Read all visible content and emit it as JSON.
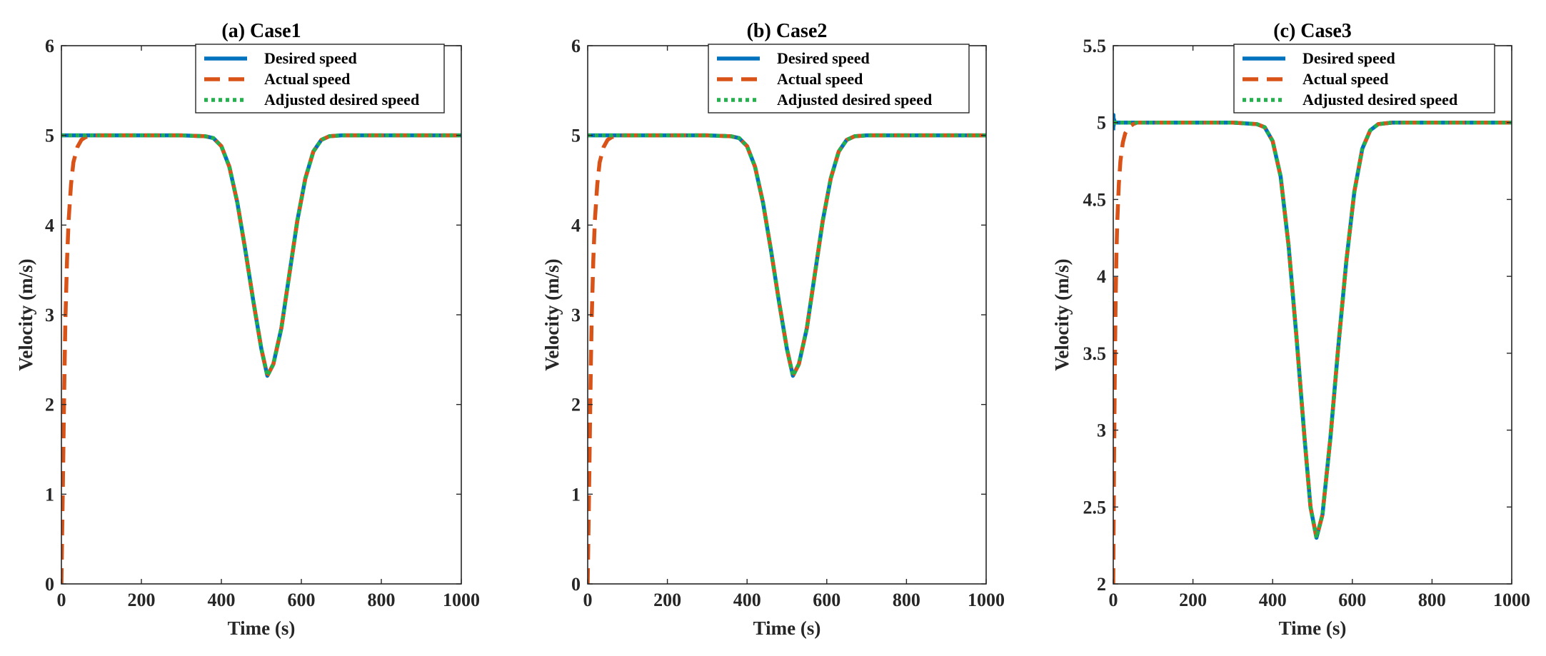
{
  "colors": {
    "desired": "#0072BD",
    "actual": "#D95319",
    "adjusted": "#22B14C",
    "axis": "#262626"
  },
  "chart_data": [
    {
      "type": "line",
      "title": "(a) Case1",
      "xlabel": "Time (s)",
      "ylabel": "Velocity (m/s)",
      "xlim": [
        0,
        1000
      ],
      "ylim": [
        0,
        6
      ],
      "xticks": [
        0,
        200,
        400,
        600,
        800,
        1000
      ],
      "xtick_labels": [
        "0",
        "200",
        "400",
        "600",
        "800",
        "1000"
      ],
      "yticks": [
        0,
        1,
        2,
        3,
        4,
        5,
        6
      ],
      "ytick_labels": [
        "0",
        "1",
        "2",
        "3",
        "4",
        "5",
        "6"
      ],
      "legend_position": "top-right",
      "series": [
        {
          "name": "Desired speed",
          "style": "solid",
          "x": [
            0,
            100,
            200,
            300,
            360,
            380,
            400,
            420,
            440,
            460,
            480,
            500,
            515,
            530,
            550,
            570,
            590,
            610,
            630,
            650,
            670,
            700,
            800,
            900,
            1000
          ],
          "y": [
            5,
            5,
            5,
            5,
            4.99,
            4.97,
            4.88,
            4.65,
            4.25,
            3.72,
            3.15,
            2.62,
            2.32,
            2.45,
            2.85,
            3.45,
            4.05,
            4.52,
            4.82,
            4.95,
            4.99,
            5,
            5,
            5,
            5
          ]
        },
        {
          "name": "Actual speed",
          "style": "dashed",
          "x": [
            0,
            2,
            4,
            6,
            8,
            10,
            14,
            18,
            24,
            30,
            40,
            50,
            60,
            80,
            100,
            200,
            300,
            360,
            380,
            400,
            420,
            440,
            460,
            480,
            500,
            515,
            530,
            550,
            570,
            590,
            610,
            630,
            650,
            670,
            700,
            800,
            900,
            1000
          ],
          "y": [
            0,
            0.6,
            1.2,
            1.85,
            2.45,
            2.95,
            3.6,
            4.05,
            4.45,
            4.7,
            4.87,
            4.95,
            4.98,
            5,
            5,
            5,
            5,
            4.99,
            4.97,
            4.88,
            4.65,
            4.25,
            3.72,
            3.15,
            2.62,
            2.32,
            2.45,
            2.85,
            3.45,
            4.05,
            4.52,
            4.82,
            4.95,
            4.99,
            5,
            5,
            5,
            5
          ]
        },
        {
          "name": "Adjusted desired speed",
          "style": "dotted",
          "x": [
            0,
            100,
            200,
            300,
            360,
            380,
            400,
            420,
            440,
            460,
            480,
            500,
            515,
            530,
            550,
            570,
            590,
            610,
            630,
            650,
            670,
            700,
            800,
            900,
            1000
          ],
          "y": [
            5,
            5,
            5,
            5,
            4.99,
            4.97,
            4.88,
            4.65,
            4.25,
            3.72,
            3.15,
            2.62,
            2.32,
            2.45,
            2.85,
            3.45,
            4.05,
            4.52,
            4.82,
            4.95,
            4.99,
            5,
            5,
            5,
            5
          ]
        }
      ]
    },
    {
      "type": "line",
      "title": "(b) Case2",
      "xlabel": "Time (s)",
      "ylabel": "Velocity (m/s)",
      "xlim": [
        0,
        1000
      ],
      "ylim": [
        0,
        6
      ],
      "xticks": [
        0,
        200,
        400,
        600,
        800,
        1000
      ],
      "xtick_labels": [
        "0",
        "200",
        "400",
        "600",
        "800",
        "1000"
      ],
      "yticks": [
        0,
        1,
        2,
        3,
        4,
        5,
        6
      ],
      "ytick_labels": [
        "0",
        "1",
        "2",
        "3",
        "4",
        "5",
        "6"
      ],
      "legend_position": "top-right",
      "series": [
        {
          "name": "Desired speed",
          "style": "solid",
          "x": [
            0,
            100,
            200,
            300,
            360,
            380,
            400,
            420,
            440,
            460,
            480,
            500,
            515,
            530,
            550,
            570,
            590,
            610,
            630,
            650,
            670,
            700,
            800,
            900,
            1000
          ],
          "y": [
            5,
            5,
            5,
            5,
            4.99,
            4.97,
            4.88,
            4.65,
            4.25,
            3.72,
            3.15,
            2.62,
            2.32,
            2.45,
            2.85,
            3.45,
            4.05,
            4.52,
            4.82,
            4.95,
            4.99,
            5,
            5,
            5,
            5
          ]
        },
        {
          "name": "Actual speed",
          "style": "dashed",
          "x": [
            0,
            2,
            4,
            6,
            8,
            10,
            14,
            18,
            24,
            30,
            40,
            50,
            60,
            80,
            100,
            200,
            300,
            360,
            380,
            400,
            420,
            440,
            460,
            480,
            500,
            515,
            530,
            550,
            570,
            590,
            610,
            630,
            650,
            670,
            700,
            800,
            900,
            1000
          ],
          "y": [
            0,
            0.6,
            1.2,
            1.85,
            2.45,
            2.95,
            3.6,
            4.05,
            4.45,
            4.7,
            4.87,
            4.95,
            4.98,
            5,
            5,
            5,
            5,
            4.99,
            4.97,
            4.88,
            4.65,
            4.25,
            3.72,
            3.15,
            2.62,
            2.32,
            2.45,
            2.85,
            3.45,
            4.05,
            4.52,
            4.82,
            4.95,
            4.99,
            5,
            5,
            5,
            5
          ]
        },
        {
          "name": "Adjusted desired speed",
          "style": "dotted",
          "x": [
            0,
            100,
            200,
            300,
            360,
            380,
            400,
            420,
            440,
            460,
            480,
            500,
            515,
            530,
            550,
            570,
            590,
            610,
            630,
            650,
            670,
            700,
            800,
            900,
            1000
          ],
          "y": [
            5,
            5,
            5,
            5,
            4.99,
            4.97,
            4.88,
            4.65,
            4.25,
            3.72,
            3.15,
            2.62,
            2.32,
            2.45,
            2.85,
            3.45,
            4.05,
            4.52,
            4.82,
            4.95,
            4.99,
            5,
            5,
            5,
            5
          ]
        }
      ]
    },
    {
      "type": "line",
      "title": "(c) Case3",
      "xlabel": "Time (s)",
      "ylabel": "Velocity (m/s)",
      "xlim": [
        0,
        1000
      ],
      "ylim": [
        2,
        5.5
      ],
      "xticks": [
        0,
        200,
        400,
        600,
        800,
        1000
      ],
      "xtick_labels": [
        "0",
        "200",
        "400",
        "600",
        "800",
        "1000"
      ],
      "yticks": [
        2,
        2.5,
        3,
        3.5,
        4,
        4.5,
        5,
        5.5
      ],
      "ytick_labels": [
        "2",
        "2.5",
        "3",
        "3.5",
        "4",
        "4.5",
        "5",
        "5.5"
      ],
      "legend_position": "top-right",
      "series": [
        {
          "name": "Desired speed",
          "style": "solid",
          "x": [
            0,
            0.5,
            1,
            2,
            4,
            8,
            100,
            200,
            300,
            360,
            380,
            400,
            420,
            440,
            460,
            480,
            495,
            510,
            525,
            545,
            565,
            585,
            605,
            625,
            645,
            665,
            700,
            800,
            900,
            1000
          ],
          "y": [
            4.95,
            5.05,
            4.98,
            5.02,
            5,
            5,
            5,
            5,
            5,
            4.99,
            4.97,
            4.88,
            4.65,
            4.2,
            3.6,
            2.95,
            2.5,
            2.3,
            2.45,
            2.95,
            3.55,
            4.1,
            4.55,
            4.83,
            4.95,
            4.99,
            5,
            5,
            5,
            5
          ]
        },
        {
          "name": "Actual speed",
          "style": "dashed",
          "x": [
            0,
            2,
            4,
            6,
            8,
            10,
            14,
            18,
            24,
            30,
            40,
            50,
            60,
            80,
            100,
            200,
            300,
            360,
            380,
            400,
            420,
            440,
            460,
            480,
            495,
            510,
            525,
            545,
            565,
            585,
            605,
            625,
            645,
            665,
            700,
            800,
            900,
            1000
          ],
          "y": [
            2,
            2.8,
            3.4,
            3.85,
            4.15,
            4.35,
            4.6,
            4.75,
            4.87,
            4.93,
            4.97,
            4.99,
            5,
            5,
            5,
            5,
            5,
            4.99,
            4.97,
            4.88,
            4.65,
            4.2,
            3.6,
            2.95,
            2.5,
            2.3,
            2.45,
            2.95,
            3.55,
            4.1,
            4.55,
            4.83,
            4.95,
            4.99,
            5,
            5,
            5,
            5
          ]
        },
        {
          "name": "Adjusted desired speed",
          "style": "dotted",
          "x": [
            0,
            100,
            200,
            300,
            360,
            380,
            400,
            420,
            440,
            460,
            480,
            495,
            510,
            525,
            545,
            565,
            585,
            605,
            625,
            645,
            665,
            700,
            800,
            900,
            1000
          ],
          "y": [
            5,
            5,
            5,
            5,
            4.99,
            4.97,
            4.88,
            4.65,
            4.2,
            3.6,
            2.95,
            2.5,
            2.3,
            2.45,
            2.95,
            3.55,
            4.1,
            4.55,
            4.83,
            4.95,
            4.99,
            5,
            5,
            5,
            5
          ]
        }
      ]
    }
  ]
}
